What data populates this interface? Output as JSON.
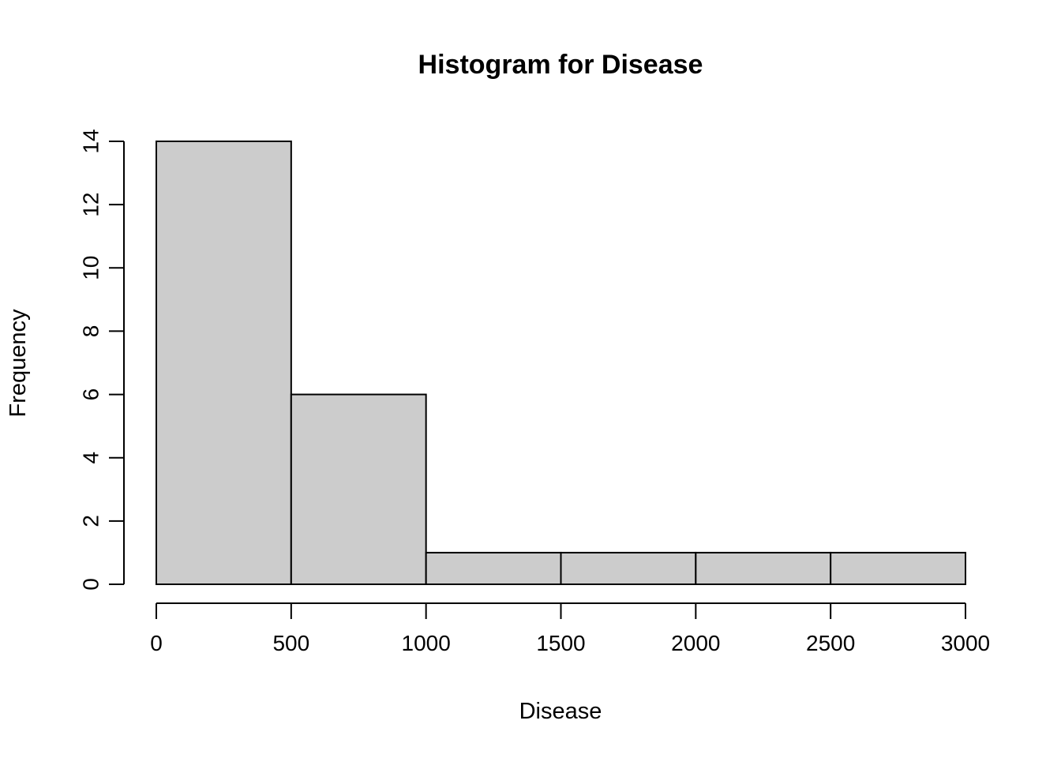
{
  "chart_data": {
    "type": "bar",
    "subtype": "histogram",
    "title": "Histogram for Disease",
    "xlabel": "Disease",
    "ylabel": "Frequency",
    "bins": [
      {
        "from": 0,
        "to": 500,
        "count": 14
      },
      {
        "from": 500,
        "to": 1000,
        "count": 6
      },
      {
        "from": 1000,
        "to": 1500,
        "count": 1
      },
      {
        "from": 1500,
        "to": 2000,
        "count": 1
      },
      {
        "from": 2000,
        "to": 2500,
        "count": 1
      },
      {
        "from": 2500,
        "to": 3000,
        "count": 1
      }
    ],
    "x_ticks": [
      0,
      500,
      1000,
      1500,
      2000,
      2500,
      3000
    ],
    "y_ticks": [
      0,
      2,
      4,
      6,
      8,
      10,
      12,
      14
    ],
    "xlim": [
      0,
      3000
    ],
    "ylim": [
      0,
      14
    ],
    "grid": false,
    "legend": "none",
    "colors": {
      "bar_fill": "#cccccc",
      "bar_border": "#000000",
      "axis": "#000000",
      "background": "#ffffff"
    }
  }
}
